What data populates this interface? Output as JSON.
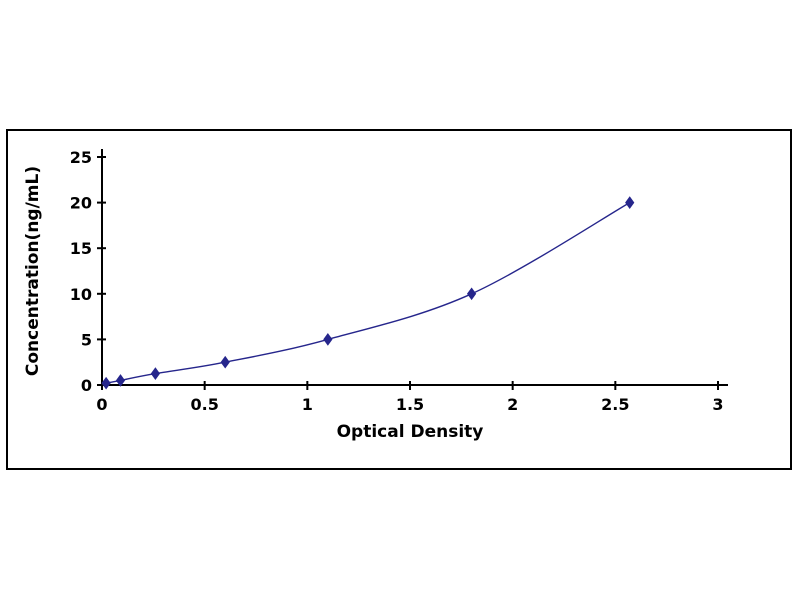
{
  "chart_data": {
    "type": "line",
    "title": "",
    "xlabel": "Optical Density",
    "ylabel": "Concentration(ng/mL)",
    "x": [
      0.02,
      0.09,
      0.26,
      0.6,
      1.1,
      1.8,
      2.57
    ],
    "y": [
      0.2,
      0.5,
      1.25,
      2.5,
      5,
      10,
      20
    ],
    "xlim": [
      0,
      3
    ],
    "ylim": [
      0,
      25
    ],
    "xticks": [
      0,
      0.5,
      1,
      1.5,
      2,
      2.5,
      3
    ],
    "xtick_labels": [
      "0",
      "0.5",
      "1",
      "1.5",
      "2",
      "2.5",
      "3"
    ],
    "yticks": [
      0,
      5,
      10,
      15,
      20,
      25
    ],
    "ytick_labels": [
      "0",
      "5",
      "10",
      "15",
      "20",
      "25"
    ],
    "grid": false,
    "legend_position": "none",
    "line_color": "#26268C",
    "marker": "diamond",
    "marker_color": "#26268C",
    "axis_color": "#000000",
    "background_color": "#FFFFFF"
  }
}
